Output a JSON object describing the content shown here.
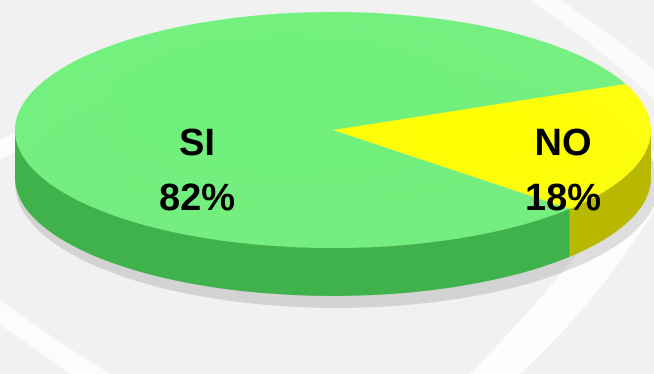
{
  "chart_data": {
    "type": "pie",
    "style": "3d",
    "title": "",
    "legend": "none",
    "slices": [
      {
        "name": "SI",
        "value": 82,
        "label": "82%",
        "color": "#6ef07a",
        "side_color": "#3fb24c"
      },
      {
        "name": "NO",
        "value": 18,
        "label": "18%",
        "color": "#ffff00",
        "side_color": "#b8b800"
      }
    ]
  }
}
